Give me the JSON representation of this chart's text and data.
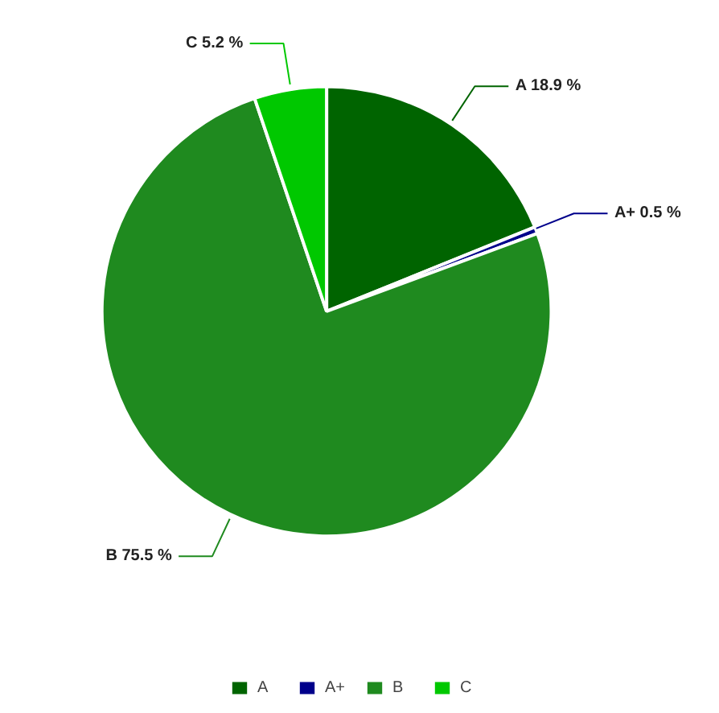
{
  "chart_data": {
    "type": "pie",
    "categories": [
      "A",
      "A+",
      "B",
      "C"
    ],
    "values": [
      18.9,
      0.5,
      75.5,
      5.2
    ],
    "colors": [
      "#006400",
      "#00008b",
      "#1f8a1f",
      "#00c800"
    ],
    "value_labels": [
      "A 18.9 %",
      "A+ 0.5 %",
      "B 75.5 %",
      "C 5.2 %"
    ],
    "legend": "bottom"
  }
}
